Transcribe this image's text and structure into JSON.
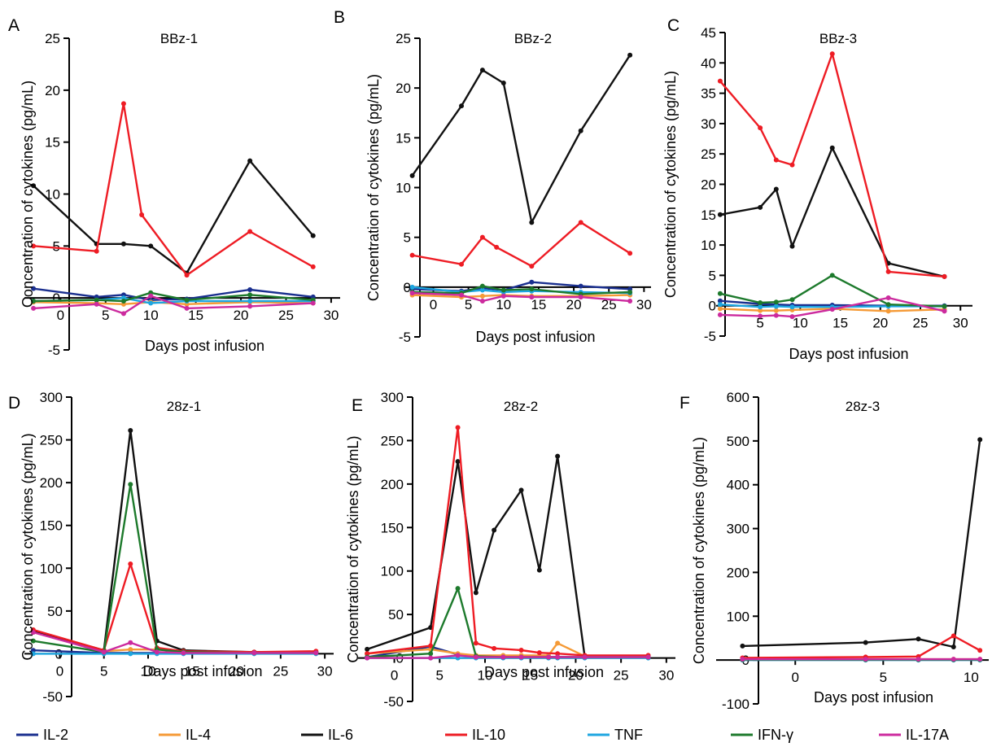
{
  "series_colors": {
    "IL-2": "#1a2f8f",
    "IL-4": "#f59a36",
    "IL-6": "#111111",
    "IL-10": "#ee1c24",
    "TNF": "#1ea6e0",
    "IFN-γ": "#1d7a2c",
    "IL-17A": "#cc2b9e"
  },
  "legend": [
    "IL-2",
    "IL-4",
    "IL-6",
    "IL-10",
    "TNF",
    "IFN-γ",
    "IL-17A"
  ],
  "chart_data": [
    {
      "type": "line",
      "panel_label": "A",
      "title": "BBz-1",
      "xlabel": "Days post infusion",
      "ylabel": "Concentration of cytokines (pg/mL)",
      "xlim": [
        -4,
        31
      ],
      "ylim": [
        -5,
        25
      ],
      "xticks": [
        0,
        5,
        10,
        15,
        20,
        25,
        30
      ],
      "yticks": [
        -5,
        0,
        5,
        10,
        15,
        20,
        25
      ],
      "series": [
        {
          "name": "IL-2",
          "x": [
            -3,
            4,
            7,
            10,
            14,
            21,
            28
          ],
          "y": [
            0.9,
            0.1,
            0.3,
            -0.2,
            -0.1,
            0.8,
            0.1
          ]
        },
        {
          "name": "IL-4",
          "x": [
            -3,
            4,
            7,
            10,
            14,
            21,
            28
          ],
          "y": [
            -0.4,
            -0.5,
            -0.6,
            -0.4,
            -0.6,
            -0.4,
            -0.5
          ]
        },
        {
          "name": "IL-6",
          "x": [
            -3,
            4,
            7,
            10,
            14,
            21,
            28
          ],
          "y": [
            10.8,
            5.2,
            5.2,
            5.0,
            2.4,
            13.2,
            6.0
          ]
        },
        {
          "name": "IL-10",
          "x": [
            -3,
            4,
            7,
            9,
            14,
            21,
            28
          ],
          "y": [
            5.0,
            4.5,
            18.7,
            8.0,
            2.2,
            6.4,
            3.0
          ]
        },
        {
          "name": "TNF",
          "x": [
            -3,
            4,
            7,
            10,
            14,
            21,
            28
          ],
          "y": [
            -0.3,
            -0.2,
            0.0,
            -0.5,
            -0.3,
            -0.3,
            -0.3
          ]
        },
        {
          "name": "IFN-γ",
          "x": [
            -3,
            4,
            7,
            10,
            14,
            21,
            28
          ],
          "y": [
            -0.3,
            -0.2,
            -0.3,
            0.5,
            -0.2,
            0.3,
            -0.2
          ]
        },
        {
          "name": "IL-17A",
          "x": [
            -3,
            4,
            7,
            10,
            14,
            21,
            28
          ],
          "y": [
            -1.0,
            -0.6,
            -1.5,
            0.2,
            -1.0,
            -0.8,
            -0.5
          ]
        }
      ]
    },
    {
      "type": "line",
      "panel_label": "B",
      "title": "BBz-2",
      "xlabel": "Days post infusion",
      "ylabel": "Concentration of cytokines (pg/mL)",
      "xlim": [
        -4,
        31
      ],
      "ylim": [
        -5,
        25
      ],
      "xticks": [
        0,
        5,
        10,
        15,
        20,
        25,
        30
      ],
      "yticks": [
        -5,
        0,
        5,
        10,
        15,
        20,
        25
      ],
      "series": [
        {
          "name": "IL-2",
          "x": [
            -3,
            4,
            7,
            10,
            14,
            21,
            28
          ],
          "y": [
            -0.2,
            -0.4,
            -0.1,
            -0.3,
            0.5,
            0.1,
            -0.2
          ]
        },
        {
          "name": "IL-4",
          "x": [
            -3,
            4,
            7,
            10,
            14,
            21,
            28
          ],
          "y": [
            -0.8,
            -1.0,
            -0.9,
            -0.8,
            -0.9,
            -0.9,
            -0.8
          ]
        },
        {
          "name": "IL-6",
          "x": [
            -3,
            4,
            7,
            10,
            14,
            21,
            28
          ],
          "y": [
            11.2,
            18.2,
            21.8,
            20.5,
            6.5,
            15.7,
            23.3
          ]
        },
        {
          "name": "IL-10",
          "x": [
            -3,
            4,
            7,
            9,
            14,
            21,
            28
          ],
          "y": [
            3.2,
            2.3,
            5.0,
            4.0,
            2.1,
            6.5,
            3.4
          ]
        },
        {
          "name": "TNF",
          "x": [
            -3,
            4,
            7,
            10,
            14,
            21,
            28
          ],
          "y": [
            0.0,
            -0.5,
            -0.3,
            -0.5,
            -0.4,
            -0.5,
            -0.6
          ]
        },
        {
          "name": "IFN-γ",
          "x": [
            -3,
            4,
            7,
            10,
            14,
            21,
            28
          ],
          "y": [
            -0.5,
            -0.6,
            0.1,
            -0.3,
            -0.2,
            -0.7,
            -0.5
          ]
        },
        {
          "name": "IL-17A",
          "x": [
            -3,
            4,
            7,
            10,
            14,
            21,
            28
          ],
          "y": [
            -0.6,
            -0.8,
            -1.4,
            -0.9,
            -1.0,
            -1.0,
            -1.4
          ]
        }
      ]
    },
    {
      "type": "line",
      "panel_label": "C",
      "title": "BBz-3",
      "xlabel": "Days post infusion",
      "ylabel": "Concentration of cytokines (pg/mL)",
      "xlim": [
        -0.5,
        31.5
      ],
      "ylim": [
        -5,
        45
      ],
      "xticks": [
        5,
        10,
        15,
        20,
        25,
        30
      ],
      "yticks": [
        -5,
        0,
        5,
        10,
        15,
        20,
        25,
        30,
        35,
        40,
        45
      ],
      "series": [
        {
          "name": "IL-2",
          "x": [
            0,
            5,
            7,
            9,
            14,
            21,
            28
          ],
          "y": [
            0.8,
            0.3,
            0.2,
            0.1,
            0.1,
            0.0,
            0.0
          ]
        },
        {
          "name": "IL-4",
          "x": [
            0,
            5,
            7,
            9,
            14,
            21,
            28
          ],
          "y": [
            -0.5,
            -0.8,
            -0.8,
            -0.7,
            -0.5,
            -0.9,
            -0.6
          ]
        },
        {
          "name": "IL-6",
          "x": [
            0,
            5,
            7,
            9,
            14,
            21,
            28
          ],
          "y": [
            15.0,
            16.2,
            19.2,
            9.8,
            26.0,
            7.0,
            4.8
          ]
        },
        {
          "name": "IL-10",
          "x": [
            0,
            5,
            7,
            9,
            14,
            21,
            28
          ],
          "y": [
            37.0,
            29.3,
            24.0,
            23.2,
            41.5,
            5.6,
            4.8
          ]
        },
        {
          "name": "TNF",
          "x": [
            0,
            5,
            7,
            9,
            14,
            21,
            28
          ],
          "y": [
            0.2,
            -0.2,
            -0.1,
            -0.2,
            -0.2,
            -0.1,
            -0.1
          ]
        },
        {
          "name": "IFN-γ",
          "x": [
            0,
            5,
            7,
            9,
            14,
            21,
            28
          ],
          "y": [
            2.0,
            0.5,
            0.6,
            1.0,
            5.0,
            0.2,
            -0.1
          ]
        },
        {
          "name": "IL-17A",
          "x": [
            0,
            5,
            7,
            9,
            14,
            21,
            28
          ],
          "y": [
            -1.5,
            -1.7,
            -1.6,
            -1.8,
            -0.6,
            1.3,
            -0.9
          ]
        }
      ]
    },
    {
      "type": "line",
      "panel_label": "D",
      "title": "28z-1",
      "xlabel": "Days post infusion",
      "ylabel": "Concentration of cytokines (pg/mL)",
      "xlim": [
        -4,
        31
      ],
      "ylim": [
        -50,
        300
      ],
      "xticks": [
        0,
        5,
        10,
        15,
        20,
        25,
        30
      ],
      "yticks": [
        -50,
        0,
        50,
        100,
        150,
        200,
        250,
        300
      ],
      "series": [
        {
          "name": "IL-2",
          "x": [
            -3,
            5,
            8,
            11,
            14,
            22,
            29
          ],
          "y": [
            4,
            1,
            1,
            1,
            1,
            1,
            1
          ]
        },
        {
          "name": "IL-4",
          "x": [
            -3,
            5,
            8,
            11,
            14,
            22,
            29
          ],
          "y": [
            27,
            3,
            5,
            5,
            3,
            2,
            2
          ]
        },
        {
          "name": "IL-6",
          "x": [
            -3,
            5,
            8,
            11,
            14,
            22,
            29
          ],
          "y": [
            27,
            4,
            261,
            15,
            4,
            2,
            2
          ]
        },
        {
          "name": "IL-10",
          "x": [
            -3,
            5,
            8,
            11,
            14,
            22,
            29
          ],
          "y": [
            28,
            4,
            105,
            7,
            3,
            2,
            3
          ]
        },
        {
          "name": "TNF",
          "x": [
            -3,
            5,
            8,
            11,
            14,
            22,
            29
          ],
          "y": [
            0,
            0,
            0,
            0,
            0,
            0,
            0
          ]
        },
        {
          "name": "IFN-γ",
          "x": [
            -3,
            5,
            8,
            11,
            14,
            22,
            29
          ],
          "y": [
            15,
            2,
            198,
            5,
            2,
            1,
            1
          ]
        },
        {
          "name": "IL-17A",
          "x": [
            -3,
            5,
            8,
            11,
            14,
            22,
            29
          ],
          "y": [
            25,
            2,
            13,
            2,
            1,
            1,
            1
          ]
        }
      ]
    },
    {
      "type": "line",
      "panel_label": "E",
      "title": "28z-2",
      "xlabel": "Days post infusion",
      "ylabel": "Concentration of cytokines (pg/mL)",
      "xlim": [
        -4,
        31
      ],
      "ylim": [
        -50,
        300
      ],
      "xticks": [
        0,
        5,
        10,
        15,
        20,
        25,
        30
      ],
      "yticks": [
        -50,
        0,
        50,
        100,
        150,
        200,
        250,
        300
      ],
      "series": [
        {
          "name": "IL-2",
          "x": [
            -3,
            4,
            7,
            9,
            12,
            14,
            17,
            18,
            21,
            28
          ],
          "y": [
            1,
            13,
            4,
            1,
            1,
            1,
            1,
            1,
            1,
            1
          ]
        },
        {
          "name": "IL-4",
          "x": [
            -3,
            4,
            7,
            9,
            12,
            14,
            17,
            18,
            21,
            28
          ],
          "y": [
            5,
            10,
            5,
            3,
            3,
            3,
            3,
            17,
            2,
            2
          ]
        },
        {
          "name": "IL-6",
          "x": [
            -3,
            4,
            7,
            9,
            11,
            14,
            16,
            18,
            21,
            28
          ],
          "y": [
            10,
            35,
            226,
            75,
            147,
            193,
            101,
            232,
            1,
            1
          ]
        },
        {
          "name": "IL-10",
          "x": [
            -3,
            4,
            7,
            9,
            11,
            14,
            16,
            18,
            21,
            28
          ],
          "y": [
            5,
            14,
            265,
            17,
            11,
            9,
            6,
            5,
            3,
            3
          ]
        },
        {
          "name": "TNF",
          "x": [
            -3,
            4,
            7,
            9,
            12,
            14,
            17,
            18,
            21,
            28
          ],
          "y": [
            0,
            0,
            0,
            0,
            0,
            0,
            0,
            0,
            0,
            0
          ]
        },
        {
          "name": "IFN-γ",
          "x": [
            -3,
            4,
            7,
            9,
            12,
            14,
            17,
            18,
            21,
            28
          ],
          "y": [
            1,
            5,
            80,
            2,
            1,
            1,
            1,
            1,
            1,
            1
          ]
        },
        {
          "name": "IL-17A",
          "x": [
            -3,
            4,
            7,
            9,
            12,
            14,
            17,
            18,
            21,
            28
          ],
          "y": [
            0,
            0,
            3,
            1,
            1,
            1,
            1,
            1,
            1,
            1
          ]
        }
      ]
    },
    {
      "type": "line",
      "panel_label": "F",
      "title": "28z-3",
      "xlabel": "Days post infusion",
      "ylabel": "Concentration of cytokines (pg/mL)",
      "xlim": [
        -4.5,
        11
      ],
      "ylim": [
        -100,
        600
      ],
      "xticks": [
        0,
        5,
        10
      ],
      "yticks": [
        -100,
        0,
        100,
        200,
        300,
        400,
        500,
        600
      ],
      "series": [
        {
          "name": "IL-2",
          "x": [
            -3,
            4,
            7,
            9,
            10.5
          ],
          "y": [
            1,
            1,
            1,
            1,
            1
          ]
        },
        {
          "name": "IL-4",
          "x": [
            -3,
            4,
            7,
            9,
            10.5
          ],
          "y": [
            2,
            2,
            2,
            2,
            2
          ]
        },
        {
          "name": "IL-6",
          "x": [
            -3,
            4,
            7,
            9,
            10.5
          ],
          "y": [
            32,
            40,
            48,
            30,
            503
          ]
        },
        {
          "name": "IL-10",
          "x": [
            -3,
            4,
            7,
            9,
            10.5
          ],
          "y": [
            5,
            7,
            8,
            55,
            22
          ]
        },
        {
          "name": "TNF",
          "x": [
            -3,
            4,
            7,
            9,
            10.5
          ],
          "y": [
            0,
            0,
            0,
            0,
            0
          ]
        },
        {
          "name": "IFN-γ",
          "x": [
            -3,
            4,
            7,
            9,
            10.5
          ],
          "y": [
            1,
            1,
            1,
            1,
            1
          ]
        },
        {
          "name": "IL-17A",
          "x": [
            -3,
            4,
            7,
            9,
            10.5
          ],
          "y": [
            2,
            2,
            2,
            2,
            2
          ]
        }
      ]
    }
  ]
}
